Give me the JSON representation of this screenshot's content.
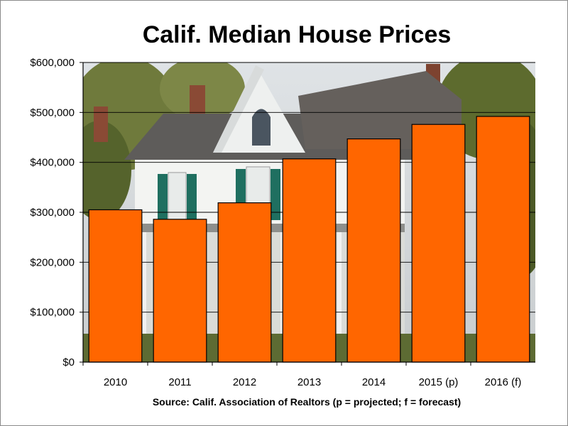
{
  "chart_data": {
    "type": "bar",
    "title": "Calif. Median House Prices",
    "source_note": "Source: Calif. Association of Realtors (p = projected; f = forecast)",
    "categories": [
      "2010",
      "2011",
      "2012",
      "2013",
      "2014",
      "2015 (p)",
      "2016 (f)"
    ],
    "values": [
      305000,
      286000,
      319000,
      407000,
      447000,
      476000,
      492000
    ],
    "ylim": [
      0,
      600000
    ],
    "y_ticks": [
      0,
      100000,
      200000,
      300000,
      400000,
      500000,
      600000
    ],
    "y_tick_labels": [
      "$0",
      "$100,000",
      "$200,000",
      "$300,000",
      "$400,000",
      "$500,000",
      "$600,000"
    ],
    "xlabel": "",
    "ylabel": "",
    "grid": true,
    "bar_color": "#ff6600",
    "background": "photo of a white two-story house with green shutters"
  }
}
